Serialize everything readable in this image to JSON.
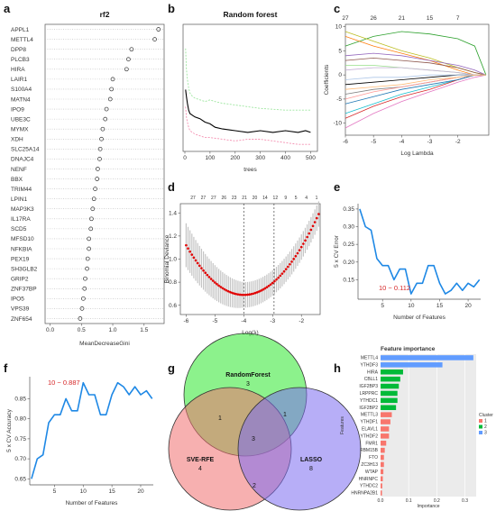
{
  "chart_data": [
    {
      "panel": "a",
      "type": "scatter",
      "title": "rf2",
      "xlabel": "MeanDecreaseGini",
      "xticks": [
        "0.0",
        "0.5",
        "1.0",
        "1.5"
      ],
      "xlim": [
        -0.08,
        1.82
      ],
      "categories": [
        "APPL1",
        "METTL4",
        "DPP8",
        "PLCB3",
        "HIRA",
        "LAIR1",
        "S100A4",
        "MATN4",
        "IPO9",
        "UBE3C",
        "MYMX",
        "XDH",
        "SLC25A14",
        "DNAJC4",
        "NENF",
        "BBX",
        "TRIM44",
        "LPIN1",
        "MAP3K3",
        "IL17RA",
        "SCD5",
        "MFSD10",
        "NFKBIA",
        "PEX19",
        "SH3GLB2",
        "GRIP2",
        "ZNF37BP",
        "IPO5",
        "VPS39",
        "ZNF654"
      ],
      "values": [
        1.73,
        1.67,
        1.3,
        1.25,
        1.22,
        1.0,
        0.98,
        0.96,
        0.9,
        0.88,
        0.84,
        0.82,
        0.8,
        0.79,
        0.76,
        0.75,
        0.72,
        0.7,
        0.68,
        0.66,
        0.65,
        0.62,
        0.62,
        0.6,
        0.59,
        0.56,
        0.55,
        0.53,
        0.51,
        0.48
      ]
    },
    {
      "panel": "b",
      "type": "line",
      "title": "Random forest",
      "xlabel": "trees",
      "ylabel": "",
      "xticks": [
        0,
        100,
        200,
        300,
        400,
        500
      ],
      "xlim": [
        0,
        520
      ],
      "ylim": [
        0,
        0.7
      ],
      "series": [
        {
          "color": "#9ee6a0",
          "dash": "2,1.5",
          "x": [
            3,
            6,
            10,
            15,
            20,
            30,
            40,
            60,
            80,
            100,
            120,
            150,
            200,
            300,
            400,
            450,
            500
          ],
          "y": [
            0.58,
            0.46,
            0.4,
            0.35,
            0.32,
            0.3,
            0.29,
            0.28,
            0.27,
            0.28,
            0.27,
            0.26,
            0.25,
            0.23,
            0.22,
            0.22,
            0.22
          ]
        },
        {
          "color": "#000000",
          "dash": "",
          "x": [
            3,
            6,
            10,
            15,
            20,
            30,
            40,
            60,
            80,
            100,
            120,
            150,
            200,
            250,
            300,
            350,
            400,
            450,
            480,
            500
          ],
          "y": [
            0.34,
            0.3,
            0.26,
            0.22,
            0.2,
            0.19,
            0.18,
            0.17,
            0.15,
            0.14,
            0.12,
            0.11,
            0.1,
            0.09,
            0.1,
            0.09,
            0.1,
            0.09,
            0.1,
            0.09
          ]
        },
        {
          "color": "#f48fb1",
          "dash": "2,1.5",
          "x": [
            3,
            6,
            10,
            15,
            20,
            30,
            40,
            60,
            80,
            100,
            150,
            200,
            250,
            300,
            350,
            400,
            450,
            500
          ],
          "y": [
            0.24,
            0.18,
            0.15,
            0.12,
            0.1,
            0.09,
            0.08,
            0.07,
            0.06,
            0.06,
            0.05,
            0.04,
            0.05,
            0.05,
            0.04,
            0.03,
            0.02,
            0.02
          ]
        }
      ]
    },
    {
      "panel": "c",
      "type": "line",
      "xlabel": "Log Lambda",
      "ylabel": "Coefficients",
      "xticks": [
        -6,
        -5,
        -4,
        -3,
        -2
      ],
      "yticks": [
        -10,
        -5,
        0,
        5,
        10
      ],
      "toplabels": [
        "27",
        "26",
        "21",
        "15",
        "7"
      ],
      "xlim": [
        -6,
        -0.9
      ],
      "ylim": [
        -12.5,
        10.5
      ],
      "series_x": [
        -6,
        -5,
        -4,
        -3,
        -2,
        -1.4,
        -1
      ],
      "series": [
        {
          "color": "#2ca02c",
          "y": [
            6,
            8,
            9,
            8.5,
            7.5,
            6,
            0
          ]
        },
        {
          "color": "#bcbd22",
          "y": [
            9,
            7,
            5,
            3.5,
            1.5,
            0.5,
            0
          ]
        },
        {
          "color": "#ff7f0e",
          "y": [
            8,
            6,
            4.5,
            3,
            1,
            0,
            0
          ]
        },
        {
          "color": "#9467bd",
          "y": [
            4,
            4.5,
            4,
            3,
            2,
            1,
            0
          ]
        },
        {
          "color": "#8c564b",
          "y": [
            3,
            3.5,
            3,
            2.5,
            1.5,
            0.5,
            0
          ]
        },
        {
          "color": "#e377c2",
          "y": [
            -11,
            -8,
            -5.5,
            -3.5,
            -1.5,
            -0.5,
            0
          ]
        },
        {
          "color": "#17becf",
          "y": [
            -8,
            -6,
            -4,
            -2.5,
            -1,
            0,
            0
          ]
        },
        {
          "color": "#d62728",
          "y": [
            -9,
            -6.5,
            -4.5,
            -3,
            -1,
            0,
            0
          ]
        },
        {
          "color": "#1f77b4",
          "y": [
            -6,
            -4.5,
            -3,
            -2,
            -1,
            0,
            0
          ]
        },
        {
          "color": "#7f7f7f",
          "y": [
            -4,
            -3,
            -2.5,
            -1.5,
            -0.5,
            0,
            0
          ]
        },
        {
          "color": "#000000",
          "y": [
            -2,
            -1.5,
            -1,
            -0.5,
            0,
            0,
            0
          ]
        },
        {
          "color": "#98df8a",
          "y": [
            2,
            2,
            1.5,
            1,
            0.5,
            0,
            0
          ]
        },
        {
          "color": "#ff9896",
          "y": [
            -5,
            -3.5,
            -2.5,
            -1.5,
            -0.5,
            0,
            0
          ]
        },
        {
          "color": "#c5b0d5",
          "y": [
            1,
            1.5,
            1.5,
            1,
            0.5,
            0,
            0
          ]
        },
        {
          "color": "#aec7e8",
          "y": [
            -1,
            -0.5,
            -0.5,
            0,
            0,
            0,
            0
          ]
        },
        {
          "color": "#ffbb78",
          "y": [
            -3,
            -2.5,
            -2,
            -1,
            -0.5,
            0,
            0
          ]
        }
      ]
    },
    {
      "panel": "d",
      "type": "scatter",
      "xlabel": "Log(λ)",
      "ylabel": "Binomial Deviance",
      "xticks": [
        -6,
        -5,
        -4,
        -3,
        -2
      ],
      "yticks": [
        0.6,
        0.8,
        1.0,
        1.2,
        1.4
      ],
      "toplabels": [
        "27",
        "27",
        "27",
        "26",
        "23",
        "21",
        "20",
        "14",
        "12",
        "9",
        "5",
        "4",
        "1"
      ],
      "xlim": [
        -6.2,
        -1.35
      ],
      "ylim": [
        0.52,
        1.48
      ],
      "vlines": [
        -4.0,
        -2.95
      ],
      "x_start": -6.0,
      "x_end": -1.4,
      "min_x": -4.0,
      "min_y": 0.69,
      "start_y": 1.12,
      "end_y": 1.39
    },
    {
      "panel": "e",
      "type": "line",
      "xlabel": "Number of Features",
      "ylabel": "5 x CV Error",
      "xticks": [
        5,
        10,
        15,
        20
      ],
      "yticks": [
        0.15,
        0.2,
        0.25,
        0.3,
        0.35
      ],
      "xlim": [
        0.7,
        22.2
      ],
      "ylim": [
        0.095,
        0.365
      ],
      "annotation": "10 − 0.112",
      "x": [
        1,
        2,
        3,
        4,
        5,
        6,
        7,
        8,
        9,
        10,
        11,
        12,
        13,
        14,
        15,
        16,
        17,
        18,
        19,
        20,
        21,
        22
      ],
      "y": [
        0.35,
        0.3,
        0.29,
        0.21,
        0.19,
        0.19,
        0.15,
        0.18,
        0.18,
        0.11,
        0.14,
        0.14,
        0.19,
        0.19,
        0.14,
        0.11,
        0.12,
        0.14,
        0.12,
        0.14,
        0.13,
        0.15
      ]
    },
    {
      "panel": "f",
      "type": "line",
      "xlabel": "Number of Features",
      "ylabel": "5 x CV Accuracy",
      "xticks": [
        5,
        10,
        15,
        20
      ],
      "yticks": [
        0.65,
        0.7,
        0.75,
        0.8,
        0.85
      ],
      "xlim": [
        0.7,
        22.2
      ],
      "ylim": [
        0.635,
        0.905
      ],
      "annotation": "10 − 0.887",
      "x": [
        1,
        2,
        3,
        4,
        5,
        6,
        7,
        8,
        9,
        10,
        11,
        12,
        13,
        14,
        15,
        16,
        17,
        18,
        19,
        20,
        21,
        22
      ],
      "y": [
        0.65,
        0.7,
        0.71,
        0.79,
        0.81,
        0.81,
        0.85,
        0.82,
        0.82,
        0.89,
        0.86,
        0.86,
        0.81,
        0.81,
        0.86,
        0.89,
        0.88,
        0.86,
        0.88,
        0.86,
        0.87,
        0.85
      ]
    },
    {
      "panel": "g",
      "type": "venn",
      "sets": [
        {
          "name": "RandomForest",
          "only": "3",
          "color": "#2ee82e"
        },
        {
          "name": "SVE-RFE",
          "only": "4",
          "color": "#f07070"
        },
        {
          "name": "LASSO",
          "only": "8",
          "color": "#7b6cf0"
        }
      ],
      "rf_svm": "1",
      "rf_lasso": "1",
      "svm_lasso": "2",
      "all": "3"
    },
    {
      "panel": "h",
      "type": "bar",
      "title": "Feature importance",
      "xlabel": "Importance",
      "ylabel": "Features",
      "xticks": [
        "0.0",
        "0.1",
        "0.2",
        "0.3"
      ],
      "xlim": [
        0,
        0.34
      ],
      "legend_title": "Cluster",
      "legend": [
        {
          "label": "1",
          "color": "#f8766d"
        },
        {
          "label": "2",
          "color": "#00ba38"
        },
        {
          "label": "3",
          "color": "#619cff"
        }
      ],
      "categories": [
        "METTL4",
        "YTHDF3",
        "HIRA",
        "CBLL1",
        "IGF2BP3",
        "LRPPRC",
        "YTHDC1",
        "IGF2BP2",
        "METTL3",
        "YTHDF1",
        "ELAVL1",
        "YTHDF2",
        "FMR1",
        "RBM15B",
        "FTO",
        "ZC3H13",
        "WTAP",
        "HNRNPC",
        "YTHDC2",
        "HNRNPA2B1"
      ],
      "values": [
        0.33,
        0.22,
        0.08,
        0.07,
        0.065,
        0.06,
        0.06,
        0.055,
        0.04,
        0.035,
        0.03,
        0.03,
        0.02,
        0.015,
        0.012,
        0.012,
        0.01,
        0.008,
        0.006,
        0.005
      ],
      "clusters": [
        3,
        3,
        2,
        2,
        2,
        2,
        2,
        2,
        1,
        1,
        1,
        1,
        1,
        1,
        1,
        1,
        1,
        1,
        1,
        1
      ]
    }
  ],
  "panels": {
    "a": "a",
    "b": "b",
    "c": "c",
    "d": "d",
    "e": "e",
    "f": "f",
    "g": "g",
    "h": "h"
  }
}
